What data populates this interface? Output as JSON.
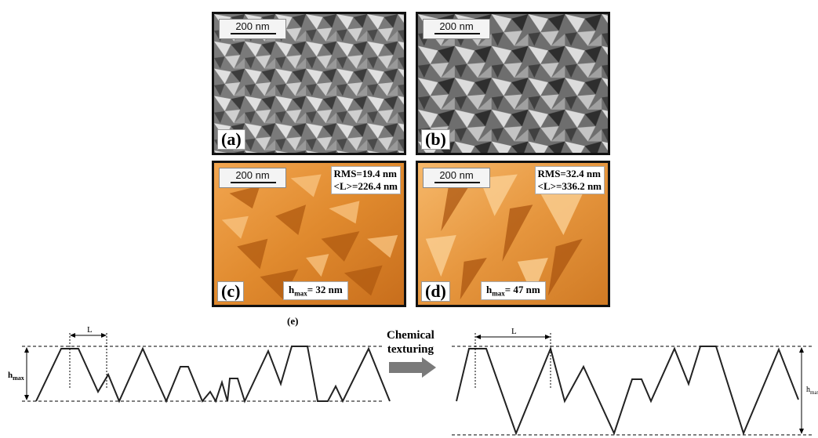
{
  "panels": [
    {
      "label": "(a)",
      "scale": "200 nm"
    },
    {
      "label": "(b)",
      "scale": "200 nm"
    },
    {
      "label": "(c)",
      "scale": "200 nm",
      "rms": "RMS=19.4 nm",
      "length": "<L>=226.4 nm",
      "hmax_prefix": "h",
      "hmax_sub": "max",
      "hmax_value": "= 32 nm"
    },
    {
      "label": "(d)",
      "scale": "200 nm",
      "rms": "RMS=32.4 nm",
      "length": "<L>=336.2 nm",
      "hmax_prefix": "h",
      "hmax_sub": "max",
      "hmax_value": "= 47 nm"
    }
  ],
  "profile": {
    "label": "(e)",
    "left_L": "L",
    "left_h": "h",
    "left_h_sub": "max",
    "arrow_text_1": "Chemical",
    "arrow_text_2": "texturing",
    "right_L": "L",
    "right_h": "h",
    "right_h_sub": "max"
  },
  "colors": {
    "sem_dark": "#3a3a3a",
    "sem_light": "#d8d8d8",
    "afm_dark": "#b05a10",
    "afm_light": "#f6b86a",
    "arrow": "#7a7a7a"
  }
}
